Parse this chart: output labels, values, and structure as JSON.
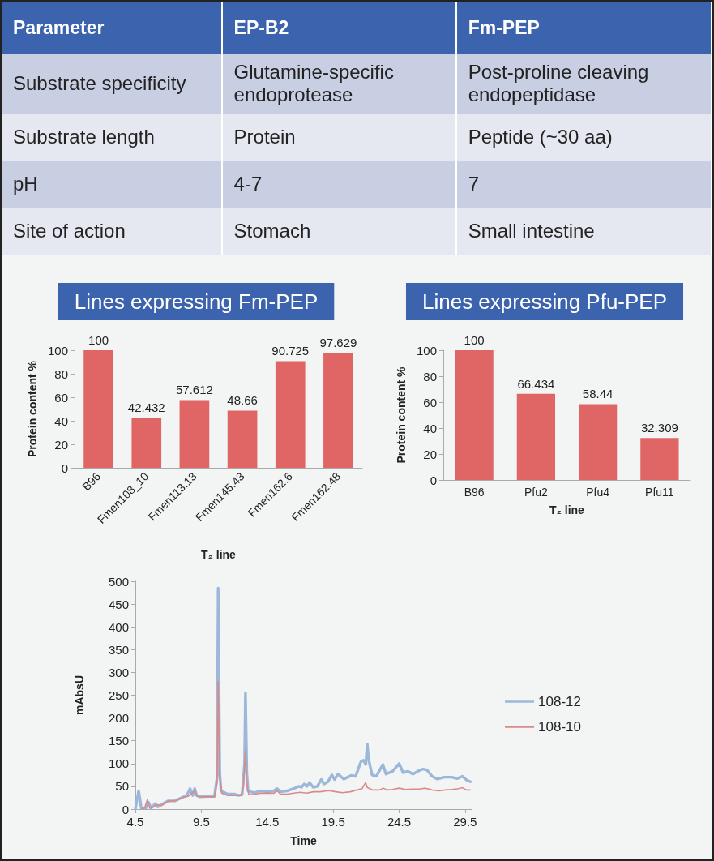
{
  "chart_data": [
    {
      "type": "other",
      "categories": [
        "Parameter",
        "EP-B2",
        "Fm-PEP"
      ],
      "cell_labels": [
        [
          "Substrate specificity",
          "Glutamine-specific endoprotease",
          "Post-proline cleaving endopeptidase"
        ],
        [
          "Substrate length",
          "Protein",
          "Peptide (~30 aa)"
        ],
        [
          "pH",
          "4-7",
          "7"
        ],
        [
          "Site of action",
          "Stomach",
          "Small intestine"
        ]
      ]
    },
    {
      "type": "bar",
      "title": "Lines expressing Fm-PEP",
      "xlabel": "T₂ line",
      "ylabel": "Protein content %",
      "categories": [
        "B96",
        "Fmen108_10",
        "Fmen113.13",
        "Fmen145.43",
        "Fmen162.6",
        "Fmen162.48"
      ],
      "values": [
        100,
        42.432,
        57.612,
        48.66,
        90.725,
        97.629
      ],
      "color": "#e06666",
      "ylim": [
        0,
        100
      ],
      "yticks": [
        0,
        20,
        40,
        60,
        80,
        100
      ],
      "grid": false,
      "data_labels": true
    },
    {
      "type": "bar",
      "title": "Lines expressing Pfu-PEP",
      "xlabel": "T₂ line",
      "ylabel": "Protein content %",
      "categories": [
        "B96",
        "Pfu2",
        "Pfu4",
        "Pfu11"
      ],
      "values": [
        100,
        66.434,
        58.44,
        32.309
      ],
      "color": "#e06666",
      "ylim": [
        0,
        100
      ],
      "yticks": [
        0,
        20,
        40,
        60,
        80,
        100
      ],
      "grid": false,
      "data_labels": true
    },
    {
      "type": "line",
      "xlabel": "Time",
      "ylabel": "mAbsU",
      "xlim": [
        4.5,
        30
      ],
      "xticks": [
        4.5,
        9.5,
        14.5,
        19.5,
        24.5,
        29.5
      ],
      "ylim": [
        0,
        500
      ],
      "yticks": [
        0,
        50,
        100,
        150,
        200,
        250,
        300,
        350,
        400,
        450,
        500
      ],
      "grid": false,
      "legend": "right",
      "marker": "none",
      "line_style": "solid",
      "series": [
        {
          "name": "108-12",
          "color": "#9bb7d9",
          "x": [
            4.5,
            4.75,
            4.95,
            5.3,
            5.5,
            5.7,
            6.0,
            6.2,
            6.6,
            7.0,
            7.5,
            8.0,
            8.4,
            8.65,
            8.85,
            9.0,
            9.15,
            9.4,
            10.0,
            10.5,
            10.7,
            10.78,
            10.9,
            11.0,
            11.5,
            12.0,
            12.3,
            12.6,
            12.78,
            12.85,
            12.95,
            13.05,
            13.5,
            14.0,
            14.5,
            15.0,
            15.25,
            15.5,
            16.0,
            16.5,
            16.9,
            17.1,
            17.3,
            17.5,
            17.7,
            18.0,
            18.3,
            18.6,
            18.8,
            19.1,
            19.4,
            19.6,
            19.87,
            20.3,
            20.9,
            21.2,
            21.6,
            21.8,
            21.97,
            22.08,
            22.18,
            22.45,
            22.77,
            23.27,
            23.5,
            24.0,
            24.5,
            24.8,
            25.15,
            25.55,
            25.9,
            26.3,
            26.6,
            27.0,
            27.4,
            27.9,
            28.5,
            28.9,
            29.3,
            29.6,
            29.9
          ],
          "values": [
            0,
            40,
            2,
            2,
            15,
            2,
            12,
            5,
            12,
            18,
            18,
            25,
            30,
            45,
            30,
            45,
            30,
            27,
            28,
            28,
            70,
            485,
            80,
            40,
            33,
            33,
            30,
            32,
            100,
            255,
            80,
            40,
            36,
            40,
            38,
            40,
            45,
            38,
            40,
            45,
            50,
            48,
            55,
            50,
            58,
            48,
            50,
            65,
            55,
            60,
            75,
            65,
            77,
            66,
            74,
            72,
            104,
            107,
            98,
            143,
            110,
            75,
            72,
            98,
            77,
            83,
            100,
            80,
            83,
            77,
            83,
            88,
            86,
            72,
            66,
            70,
            70,
            67,
            72,
            64,
            60
          ]
        },
        {
          "name": "108-10",
          "color": "#d98b8b",
          "x": [
            5.0,
            5.2,
            5.4,
            5.6,
            5.9,
            6.1,
            6.5,
            7.0,
            7.5,
            8.0,
            8.5,
            9.0,
            9.2,
            9.5,
            10.0,
            10.5,
            10.7,
            10.78,
            10.9,
            11.05,
            11.5,
            12.0,
            12.5,
            12.7,
            12.85,
            12.95,
            13.1,
            13.5,
            14.0,
            14.5,
            15.0,
            15.25,
            15.5,
            16.0,
            16.5,
            17.0,
            17.5,
            18.0,
            18.5,
            19.0,
            19.3,
            19.7,
            20.2,
            20.8,
            21.3,
            21.7,
            21.95,
            22.1,
            22.5,
            23.0,
            23.3,
            23.6,
            24.0,
            24.5,
            25.0,
            25.5,
            26.0,
            26.5,
            27.0,
            27.5,
            28.0,
            28.5,
            29.0,
            29.3,
            29.6,
            29.9
          ],
          "values": [
            0,
            2,
            20,
            2,
            5,
            10,
            8,
            18,
            18,
            25,
            28,
            40,
            28,
            27,
            27,
            27,
            60,
            280,
            70,
            35,
            30,
            30,
            30,
            50,
            130,
            55,
            32,
            32,
            35,
            35,
            35,
            40,
            33,
            33,
            35,
            37,
            35,
            38,
            38,
            40,
            40,
            38,
            36,
            38,
            42,
            45,
            58,
            47,
            42,
            42,
            46,
            42,
            43,
            46,
            43,
            44,
            44,
            46,
            42,
            40,
            42,
            43,
            45,
            47,
            42,
            42
          ]
        }
      ]
    }
  ]
}
